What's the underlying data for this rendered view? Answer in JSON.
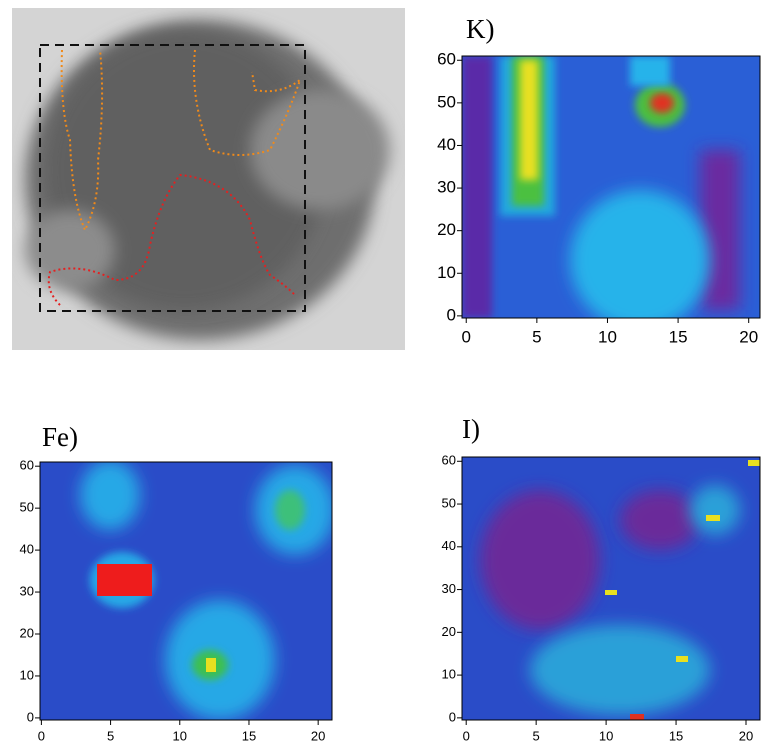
{
  "chart_data": [
    {
      "type": "heatmap",
      "title": "K)",
      "xlim": [
        -0.3,
        20.8
      ],
      "ylim": [
        -0.5,
        61
      ],
      "xticks": [
        0,
        5,
        10,
        15,
        20
      ],
      "yticks": [
        0,
        10,
        20,
        30,
        40,
        50,
        60
      ]
    },
    {
      "type": "heatmap",
      "title": "Fe)",
      "xlim": [
        -0.1,
        21
      ],
      "ylim": [
        -0.5,
        61
      ],
      "xticks": [
        0,
        5,
        10,
        15,
        20
      ],
      "yticks": [
        0,
        10,
        20,
        30,
        40,
        50,
        60
      ]
    },
    {
      "type": "heatmap",
      "title": "I)",
      "xlim": [
        -0.3,
        21
      ],
      "ylim": [
        -0.5,
        61
      ],
      "xticks": [
        0,
        5,
        10,
        15,
        20
      ],
      "yticks": [
        0,
        10,
        20,
        30,
        40,
        50,
        60
      ]
    }
  ]
}
